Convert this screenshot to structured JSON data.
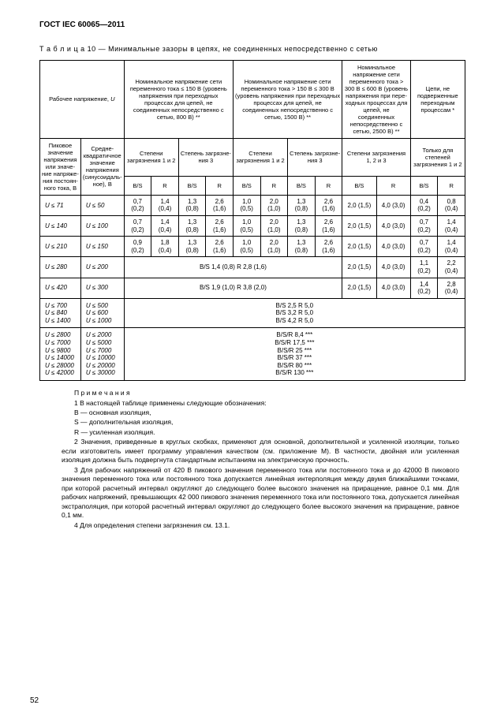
{
  "doc_title": "ГОСТ IEC 60065—2011",
  "table_caption": "Т а б л и ц а  10 — Минимальные зазоры в цепях, не соединенных непосредственно с сетью",
  "page_number": "52",
  "headers": {
    "working_voltage": "Рабочее напряжение, ",
    "working_voltage_sym": "U",
    "peak": "Пиковое значение напряже­ния или значе­ние напря­же­ния постоян­ного тока, В",
    "rms": "Средне­квадратич­ное значение напряже­ния (синусои­даль­ное), В",
    "col150": "Номинальное напряжение сети переменного тока ≤ 150 В (уровень напряжения при переходных процессах для цепей, не соединенных непосредственно с сетью, 800 В) **",
    "col300": "Номинальное напряжение сети переменного тока > 150 В ≤ 300 В (уровень напряжения при переходных процессах для цепей, не соединенных непосредственно с сетью, 1500 В) **",
    "col600": "Номинальное напряжение сети переменного тока > 300 В ≤ 600 В (уровень напря­жения при пере­ходных процес­сах для цепей, не соединенных непосредственно с сетью, 2500 В) **",
    "col_none": "Цепи, не подвержен­ные переход­ным процес­сам *",
    "deg12": "Степени загрязне­ния 1 и 2",
    "deg3": "Степень загрязне­ния 3",
    "deg123": "Степени загрязне­ния 1, 2 и 3",
    "only12": "Только для степеней загрязне­ния 1 и 2",
    "bs": "B/S",
    "r": "R"
  },
  "rows_triple": [
    {
      "peak": "U ≤ 71",
      "rms": "U ≤ 50",
      "a1": "0,7 (0,2)",
      "a2": "1,4 (0,4)",
      "a3": "1,3 (0,8)",
      "a4": "2,6 (1,6)",
      "b1": "1,0 (0,5)",
      "b2": "2,0 (1,0)",
      "b3": "1,3 (0,8)",
      "b4": "2,6 (1,6)",
      "c1": "2,0 (1,5)",
      "c2": "4,0 (3,0)",
      "d1": "0,4 (0,2)",
      "d2": "0,8 (0,4)"
    },
    {
      "peak": "U ≤ 140",
      "rms": "U ≤ 100",
      "a1": "0,7 (0,2)",
      "a2": "1,4 (0,4)",
      "a3": "1,3 (0,8)",
      "a4": "2,6 (1,6)",
      "b1": "1,0 (0,5)",
      "b2": "2,0 (1,0)",
      "b3": "1,3 (0,8)",
      "b4": "2,6 (1,6)",
      "c1": "2,0 (1,5)",
      "c2": "4,0 (3,0)",
      "d1": "0,7 (0,2)",
      "d2": "1,4 (0,4)"
    },
    {
      "peak": "U ≤ 210",
      "rms": "U ≤ 150",
      "a1": "0,9 (0,2)",
      "a2": "1,8 (0,4)",
      "a3": "1,3 (0,8)",
      "a4": "2,6 (1,6)",
      "b1": "1,0 (0,5)",
      "b2": "2,0 (1,0)",
      "b3": "1,3 (0,8)",
      "b4": "2,6 (1,6)",
      "c1": "2,0 (1,5)",
      "c2": "4,0 (3,0)",
      "d1": "0,7 (0,2)",
      "d2": "1,4 (0,4)"
    }
  ],
  "row280": {
    "peak": "U ≤ 280",
    "rms": "U ≤ 200",
    "mid": "B/S 1,4 (0,8)   R 2,8 (1,6)",
    "c1": "2,0 (1,5)",
    "c2": "4,0 (3,0)",
    "d1": "1,1 (0,2)",
    "d2": "2,2 (0,4)"
  },
  "row420": {
    "peak": "U ≤ 420",
    "rms": "U ≤ 300",
    "mid": "B/S 1,9 (1,0)   R 3,8 (2,0)",
    "c1": "2,0 (1,5)",
    "c2": "4,0 (3,0)",
    "d1": "1,4 (0,2)",
    "d2": "2,8 (0,4)"
  },
  "block_bsr1": [
    {
      "peak": "U ≤ 700",
      "rms": "U ≤ 500",
      "txt": "B/S 2,5   R 5,0"
    },
    {
      "peak": "U ≤ 840",
      "rms": "U ≤ 600",
      "txt": "B/S 3,2   R 5,0"
    },
    {
      "peak": "U ≤ 1400",
      "rms": "U ≤ 1000",
      "txt": "B/S 4,2   R 5,0"
    }
  ],
  "block_bsr2": [
    {
      "peak": "U ≤ 2800",
      "rms": "U ≤ 2000",
      "txt": "B/S/R 8,4 ***"
    },
    {
      "peak": "U ≤ 7000",
      "rms": "U ≤ 5000",
      "txt": "B/S/R 17,5 ***"
    },
    {
      "peak": "U ≤ 9800",
      "rms": "U ≤ 7000",
      "txt": "B/S/R 25 ***"
    },
    {
      "peak": "U ≤ 14000",
      "rms": "U ≤ 10000",
      "txt": "B/S/R 37 ***"
    },
    {
      "peak": "U ≤ 28000",
      "rms": "U ≤ 20000",
      "txt": "B/S/R 80 ***"
    },
    {
      "peak": "U ≤ 42000",
      "rms": "U ≤ 30000",
      "txt": "B/S/R 130 ***"
    }
  ],
  "notes": {
    "head": "П р и м е ч а н и я",
    "n1": "1 В настоящей таблице применены следующие обозначения:",
    "b": "В — основная изоляция,",
    "s": "S — дополнительная изоляция,",
    "r": "R — усиленная изоляция.",
    "n2": "2 Значения, приведенные в круглых скобках, применяют для основной, дополнительной и усиленной изоляции, только если изготовитель имеет программу управления качеством (см. приложение M). В частно­сти, двойная или усиленная изоляция должна быть подвергнута стандартным испытаниям на электрическую прочность.",
    "n3": "3 Для рабочих напряжений от 420 В пикового значения переменного тока или постоянного тока и до 42000 В пикового значения переменного тока или постоянного тока допускается линейная интерполяция между двумя ближайшими точками, при которой расчетный интервал округляют до следующего более высоко­го значения на приращение, равное 0,1 мм. Для рабочих напряжений, превышающих 42 000 пикового значе­ния переменного тока или постоянного тока, допускается линейная экстраполяция, при которой расчетный интервал округляют до следующего более высокого значения на приращение, равное 0,1 мм.",
    "n4": "4 Для определения степени загрязнения см. 13.1."
  }
}
